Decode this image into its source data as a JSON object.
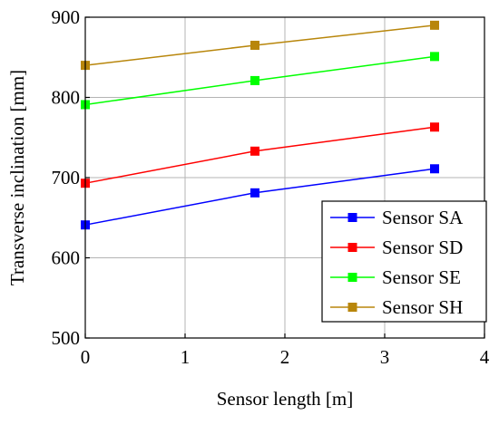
{
  "chart_data": {
    "type": "line",
    "xlabel": "Sensor length [m]",
    "ylabel": "Transverse inclination [mm]",
    "xlim": [
      0,
      4
    ],
    "ylim": [
      500,
      900
    ],
    "xticks": [
      "0",
      "1",
      "2",
      "3",
      "4"
    ],
    "yticks": [
      "500",
      "600",
      "700",
      "800",
      "900"
    ],
    "grid": true,
    "legend_position": "bottom-right",
    "x": [
      0,
      1.7,
      3.5
    ],
    "series": [
      {
        "name": "Sensor SA",
        "color": "#0000ff",
        "values": [
          641,
          681,
          711
        ]
      },
      {
        "name": "Sensor SD",
        "color": "#ff0000",
        "values": [
          693,
          733,
          763
        ]
      },
      {
        "name": "Sensor SE",
        "color": "#00ff00",
        "values": [
          791,
          821,
          851
        ]
      },
      {
        "name": "Sensor SH",
        "color": "#b8860b",
        "values": [
          840,
          865,
          890
        ]
      }
    ]
  }
}
